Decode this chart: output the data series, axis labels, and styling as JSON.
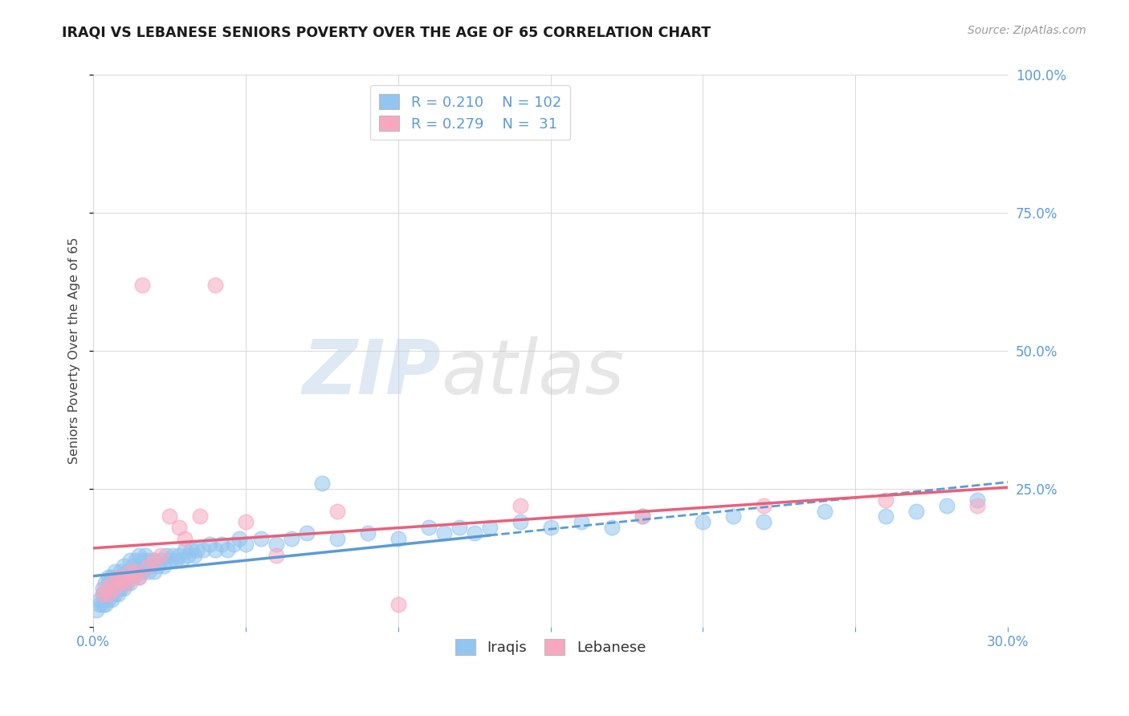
{
  "title": "IRAQI VS LEBANESE SENIORS POVERTY OVER THE AGE OF 65 CORRELATION CHART",
  "source": "Source: ZipAtlas.com",
  "ylabel": "Seniors Poverty Over the Age of 65",
  "xlim": [
    0.0,
    0.3
  ],
  "ylim": [
    0.0,
    1.0
  ],
  "xticks": [
    0.0,
    0.05,
    0.1,
    0.15,
    0.2,
    0.25,
    0.3
  ],
  "xticklabels": [
    "0.0%",
    "",
    "",
    "",
    "",
    "",
    "30.0%"
  ],
  "yticks": [
    0.0,
    0.25,
    0.5,
    0.75,
    1.0
  ],
  "yticklabels": [
    "",
    "25.0%",
    "50.0%",
    "75.0%",
    "100.0%"
  ],
  "background_color": "#ffffff",
  "grid_color": "#d8d8d8",
  "watermark_zip": "ZIP",
  "watermark_atlas": "atlas",
  "legend_R_iraqi": "0.210",
  "legend_N_iraqi": "102",
  "legend_R_lebanese": "0.279",
  "legend_N_lebanese": "31",
  "iraqi_color": "#92c5f0",
  "lebanese_color": "#f7a8c0",
  "trendline_iraqi_color": "#5b9bd5",
  "trendline_lebanese_color": "#e8607a",
  "axis_label_color": "#5b9bd5",
  "iraqi_x": [
    0.001,
    0.002,
    0.002,
    0.003,
    0.003,
    0.003,
    0.004,
    0.004,
    0.004,
    0.005,
    0.005,
    0.005,
    0.005,
    0.006,
    0.006,
    0.006,
    0.006,
    0.007,
    0.007,
    0.007,
    0.007,
    0.008,
    0.008,
    0.008,
    0.008,
    0.009,
    0.009,
    0.009,
    0.01,
    0.01,
    0.01,
    0.01,
    0.011,
    0.011,
    0.011,
    0.012,
    0.012,
    0.012,
    0.013,
    0.013,
    0.014,
    0.014,
    0.015,
    0.015,
    0.015,
    0.016,
    0.016,
    0.017,
    0.017,
    0.018,
    0.018,
    0.019,
    0.02,
    0.02,
    0.021,
    0.022,
    0.023,
    0.024,
    0.025,
    0.026,
    0.027,
    0.028,
    0.029,
    0.03,
    0.031,
    0.032,
    0.033,
    0.034,
    0.036,
    0.038,
    0.04,
    0.042,
    0.044,
    0.046,
    0.048,
    0.05,
    0.055,
    0.06,
    0.065,
    0.07,
    0.075,
    0.08,
    0.09,
    0.1,
    0.11,
    0.115,
    0.12,
    0.125,
    0.13,
    0.14,
    0.15,
    0.16,
    0.17,
    0.18,
    0.2,
    0.21,
    0.22,
    0.24,
    0.26,
    0.27,
    0.28,
    0.29
  ],
  "iraqi_y": [
    0.03,
    0.05,
    0.04,
    0.06,
    0.04,
    0.07,
    0.05,
    0.08,
    0.04,
    0.06,
    0.08,
    0.05,
    0.09,
    0.06,
    0.07,
    0.05,
    0.09,
    0.07,
    0.06,
    0.08,
    0.1,
    0.06,
    0.08,
    0.07,
    0.09,
    0.07,
    0.08,
    0.1,
    0.08,
    0.09,
    0.07,
    0.11,
    0.08,
    0.1,
    0.09,
    0.08,
    0.1,
    0.12,
    0.09,
    0.11,
    0.1,
    0.12,
    0.09,
    0.11,
    0.13,
    0.1,
    0.12,
    0.11,
    0.13,
    0.1,
    0.12,
    0.11,
    0.1,
    0.12,
    0.11,
    0.12,
    0.11,
    0.13,
    0.12,
    0.13,
    0.12,
    0.13,
    0.12,
    0.14,
    0.13,
    0.14,
    0.13,
    0.14,
    0.14,
    0.15,
    0.14,
    0.15,
    0.14,
    0.15,
    0.16,
    0.15,
    0.16,
    0.15,
    0.16,
    0.17,
    0.26,
    0.16,
    0.17,
    0.16,
    0.18,
    0.17,
    0.18,
    0.17,
    0.18,
    0.19,
    0.18,
    0.19,
    0.18,
    0.2,
    0.19,
    0.2,
    0.19,
    0.21,
    0.2,
    0.21,
    0.22,
    0.23
  ],
  "lebanese_x": [
    0.003,
    0.004,
    0.005,
    0.006,
    0.007,
    0.008,
    0.009,
    0.01,
    0.011,
    0.012,
    0.013,
    0.014,
    0.015,
    0.016,
    0.018,
    0.02,
    0.022,
    0.025,
    0.028,
    0.03,
    0.035,
    0.04,
    0.05,
    0.06,
    0.08,
    0.1,
    0.14,
    0.18,
    0.22,
    0.26,
    0.29
  ],
  "lebanese_y": [
    0.06,
    0.07,
    0.06,
    0.08,
    0.07,
    0.09,
    0.08,
    0.09,
    0.08,
    0.1,
    0.09,
    0.1,
    0.09,
    0.62,
    0.11,
    0.12,
    0.13,
    0.2,
    0.18,
    0.16,
    0.2,
    0.62,
    0.19,
    0.13,
    0.21,
    0.04,
    0.22,
    0.2,
    0.22,
    0.23,
    0.22
  ]
}
